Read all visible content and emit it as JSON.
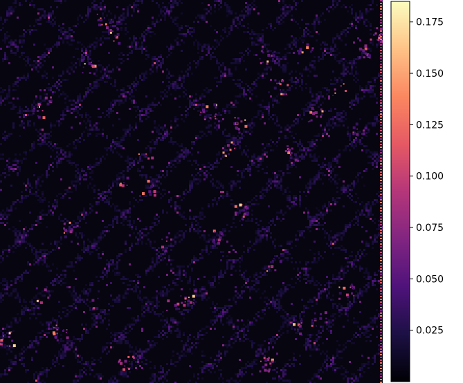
{
  "chart_data": {
    "type": "heatmap",
    "title": "",
    "xlabel": "",
    "ylabel": "",
    "axes_visible": false,
    "colormap": "magma",
    "colorbar": {
      "position": "right",
      "vmin": 0.0,
      "vmax": 0.185,
      "ticks": [
        0.025,
        0.05,
        0.075,
        0.1,
        0.125,
        0.15,
        0.175
      ],
      "tick_labels": [
        "0.025",
        "0.050",
        "0.075",
        "0.100",
        "0.125",
        "0.150",
        "0.175"
      ]
    },
    "colors": {
      "background_value_color": "#07050f",
      "cmap_stops": [
        "#000004",
        "#1c1044",
        "#4f127b",
        "#812581",
        "#b5367a",
        "#e55964",
        "#fb8761",
        "#fec287",
        "#fcfdbf"
      ]
    }
  }
}
